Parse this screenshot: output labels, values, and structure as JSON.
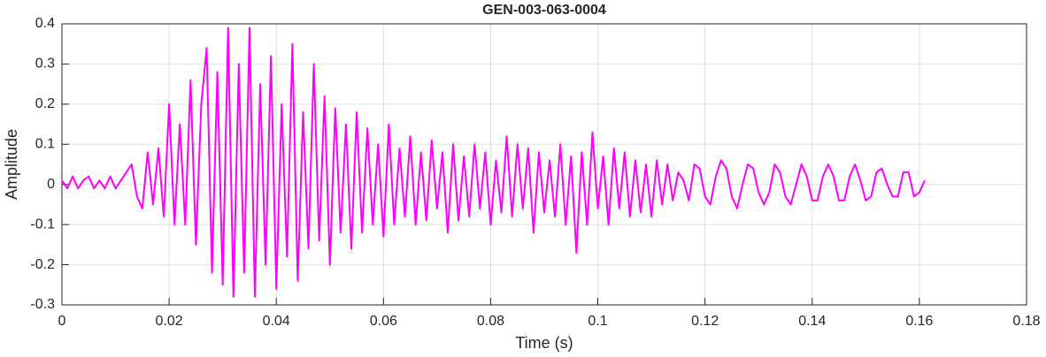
{
  "chart_data": {
    "type": "line",
    "title": "GEN-003-063-0004",
    "xlabel": "Time (s)",
    "ylabel": "Amplitude",
    "x": [
      0,
      0.001,
      0.002,
      0.003,
      0.004,
      0.005,
      0.006,
      0.007,
      0.008,
      0.009,
      0.01,
      0.011,
      0.012,
      0.013,
      0.014,
      0.015,
      0.016,
      0.017,
      0.018,
      0.019,
      0.02,
      0.021,
      0.022,
      0.023,
      0.024,
      0.025,
      0.026,
      0.027,
      0.028,
      0.029,
      0.03,
      0.031,
      0.032,
      0.033,
      0.034,
      0.035,
      0.036,
      0.037,
      0.038,
      0.039,
      0.04,
      0.041,
      0.042,
      0.043,
      0.044,
      0.045,
      0.046,
      0.047,
      0.048,
      0.049,
      0.05,
      0.051,
      0.052,
      0.053,
      0.054,
      0.055,
      0.056,
      0.057,
      0.058,
      0.059,
      0.06,
      0.061,
      0.062,
      0.063,
      0.064,
      0.065,
      0.066,
      0.067,
      0.068,
      0.069,
      0.07,
      0.071,
      0.072,
      0.073,
      0.074,
      0.075,
      0.076,
      0.077,
      0.078,
      0.079,
      0.08,
      0.081,
      0.082,
      0.083,
      0.084,
      0.085,
      0.086,
      0.087,
      0.088,
      0.089,
      0.09,
      0.091,
      0.092,
      0.093,
      0.094,
      0.095,
      0.096,
      0.097,
      0.098,
      0.099,
      0.1,
      0.101,
      0.102,
      0.103,
      0.104,
      0.105,
      0.106,
      0.107,
      0.108,
      0.109,
      0.11,
      0.111,
      0.112,
      0.113,
      0.114,
      0.115,
      0.116,
      0.117,
      0.118,
      0.119,
      0.12,
      0.121,
      0.122,
      0.123,
      0.124,
      0.125,
      0.126,
      0.127,
      0.128,
      0.129,
      0.13,
      0.131,
      0.132,
      0.133,
      0.134,
      0.135,
      0.136,
      0.137,
      0.138,
      0.139,
      0.14,
      0.141,
      0.142,
      0.143,
      0.144,
      0.145,
      0.146,
      0.147,
      0.148,
      0.149,
      0.15,
      0.151,
      0.152,
      0.153,
      0.154,
      0.155,
      0.156,
      0.157,
      0.158,
      0.159,
      0.16,
      0.161
    ],
    "series": [
      {
        "color": "#ff00ff",
        "values": [
          0.01,
          -0.01,
          0.02,
          -0.01,
          0.01,
          0.02,
          -0.01,
          0.01,
          -0.01,
          0.02,
          -0.01,
          0.01,
          0.03,
          0.05,
          -0.03,
          -0.06,
          0.08,
          -0.05,
          0.09,
          -0.08,
          0.2,
          -0.1,
          0.15,
          -0.1,
          0.26,
          -0.15,
          0.2,
          0.34,
          -0.22,
          0.28,
          -0.25,
          0.39,
          -0.28,
          0.3,
          -0.22,
          0.39,
          -0.28,
          0.25,
          -0.2,
          0.32,
          -0.26,
          0.2,
          -0.18,
          0.35,
          -0.24,
          0.18,
          -0.16,
          0.3,
          -0.14,
          0.22,
          -0.2,
          0.19,
          -0.12,
          0.15,
          -0.16,
          0.18,
          -0.12,
          0.14,
          -0.1,
          0.1,
          -0.13,
          0.15,
          -0.1,
          0.09,
          -0.08,
          0.12,
          -0.1,
          0.08,
          -0.09,
          0.11,
          -0.06,
          0.08,
          -0.12,
          0.1,
          -0.09,
          0.07,
          -0.08,
          0.1,
          -0.06,
          0.08,
          -0.1,
          0.06,
          -0.07,
          0.12,
          -0.08,
          0.1,
          -0.06,
          0.09,
          -0.12,
          0.08,
          -0.07,
          0.06,
          -0.08,
          0.1,
          -0.1,
          0.07,
          -0.17,
          0.08,
          -0.1,
          0.13,
          -0.06,
          0.07,
          -0.1,
          0.09,
          -0.06,
          0.08,
          -0.08,
          0.06,
          -0.07,
          0.05,
          -0.08,
          0.06,
          -0.05,
          0.05,
          -0.04,
          0.03,
          0.01,
          -0.04,
          0.05,
          0.04,
          -0.03,
          -0.05,
          0.02,
          0.06,
          0.04,
          -0.03,
          -0.06,
          0,
          0.05,
          0.04,
          -0.02,
          -0.05,
          -0.02,
          0.05,
          0.03,
          -0.03,
          -0.05,
          0,
          0.05,
          0.02,
          -0.04,
          -0.04,
          0.02,
          0.05,
          0.02,
          -0.04,
          -0.04,
          0.02,
          0.05,
          0.01,
          -0.04,
          -0.03,
          0.03,
          0.04,
          0,
          -0.03,
          -0.03,
          0.03,
          0.03,
          -0.03,
          -0.02,
          0.01
        ]
      }
    ],
    "xlim": [
      0,
      0.18
    ],
    "xticks": [
      0,
      0.02,
      0.04,
      0.06,
      0.08,
      0.1,
      0.12,
      0.14,
      0.16,
      0.18
    ],
    "ylim": [
      -0.3,
      0.4
    ],
    "yticks": [
      -0.3,
      -0.2,
      -0.1,
      0,
      0.1,
      0.2,
      0.3,
      0.4
    ],
    "grid": true
  }
}
